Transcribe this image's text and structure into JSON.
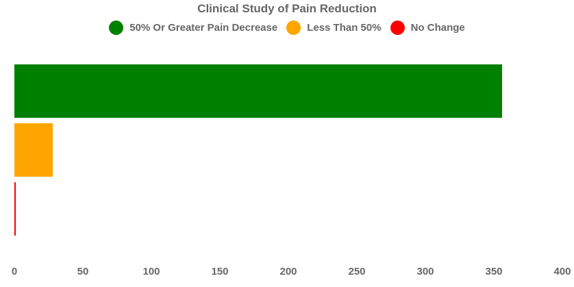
{
  "title": "Clinical Study of Pain Reduction",
  "colors": {
    "text": "#666666",
    "background": "#ffffff",
    "green": "#008000",
    "orange": "#FFA500",
    "red": "#FF0000"
  },
  "legend": {
    "items": [
      {
        "label": "50% Or Greater Pain Decrease",
        "color": "#008000",
        "slug": "50-percent-or-greater-pain-decrease"
      },
      {
        "label": "Less Than 50%",
        "color": "#FFA500",
        "slug": "less-than-50-percent"
      },
      {
        "label": "No Change",
        "color": "#FF0000",
        "slug": "no-change"
      }
    ]
  },
  "chart_data": {
    "type": "bar",
    "orientation": "horizontal",
    "title": "Clinical Study of Pain Reduction",
    "categories": [
      "50% Or Greater Pain Decrease",
      "Less Than 50%",
      "No Change"
    ],
    "values": [
      356,
      28,
      1
    ],
    "bar_colors": [
      "#008000",
      "#FFA500",
      "#FF0000"
    ],
    "xlabel": "",
    "ylabel": "",
    "xlim": [
      0,
      400
    ],
    "xticks": [
      0,
      50,
      100,
      150,
      200,
      250,
      300,
      350,
      400
    ],
    "grid": false,
    "axis_lines": false,
    "legend_position": "top-center"
  }
}
